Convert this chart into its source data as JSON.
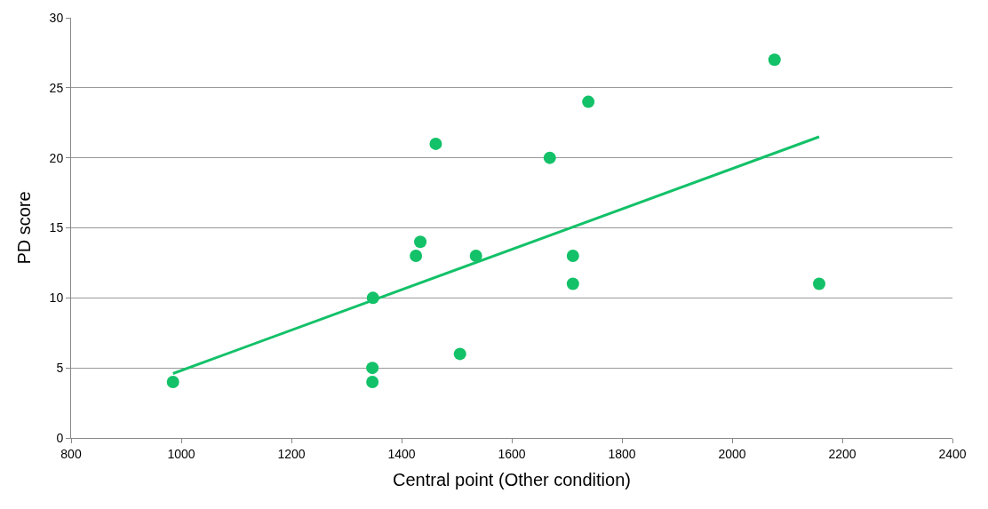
{
  "chart_data": {
    "type": "scatter",
    "xlabel": "Central point (Other condition)",
    "ylabel": "PD score",
    "x": [
      985,
      1347,
      1347,
      1348,
      1462,
      1426,
      1434,
      1506,
      1535,
      1669,
      1711,
      1711,
      1739,
      2077,
      2158
    ],
    "series": [
      {
        "color": "#13c168",
        "values": [
          4,
          5,
          4,
          10,
          21,
          13,
          14,
          6,
          13,
          20,
          13,
          11,
          24,
          27,
          11
        ]
      },
      {
        "type": "line",
        "color": "#13c168",
        "x": [
          985,
          2158
        ],
        "values": [
          4.6,
          21.5
        ],
        "marker": "none"
      }
    ],
    "xlim": [
      800,
      2400
    ],
    "xticks": [
      800,
      1000,
      1200,
      1400,
      1600,
      1800,
      2000,
      2200,
      2400
    ],
    "ylim": [
      0,
      30
    ],
    "yticks": [
      0,
      5,
      10,
      15,
      20,
      25,
      30
    ],
    "grid": "y",
    "marker": "circle"
  }
}
